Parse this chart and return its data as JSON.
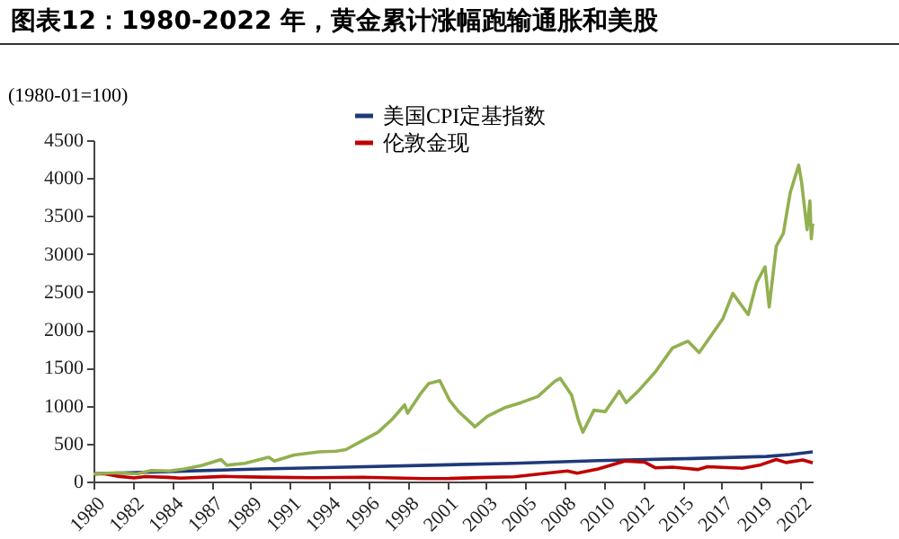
{
  "chart_data": {
    "type": "line",
    "title": "图表12：1980-2022 年，黄金累计涨幅跑输通胀和美股",
    "ylabel": "(1980-01=100)",
    "xlim": [
      "1980-01",
      "2022-10"
    ],
    "xticks": [
      {
        "value": "1980-01",
        "label": "1980"
      },
      {
        "value": "1982-05",
        "label": "1982"
      },
      {
        "value": "1984-09",
        "label": "1984"
      },
      {
        "value": "1987-01",
        "label": "1987"
      },
      {
        "value": "1989-05",
        "label": "1989"
      },
      {
        "value": "1991-09",
        "label": "1991"
      },
      {
        "value": "1994-01",
        "label": "1994"
      },
      {
        "value": "1996-05",
        "label": "1996"
      },
      {
        "value": "1998-09",
        "label": "1998"
      },
      {
        "value": "2001-01",
        "label": "2001"
      },
      {
        "value": "2003-05",
        "label": "2003"
      },
      {
        "value": "2005-09",
        "label": "2005"
      },
      {
        "value": "2008-01",
        "label": "2008"
      },
      {
        "value": "2010-05",
        "label": "2010"
      },
      {
        "value": "2012-09",
        "label": "2012"
      },
      {
        "value": "2015-01",
        "label": "2015"
      },
      {
        "value": "2017-05",
        "label": "2017"
      },
      {
        "value": "2019-09",
        "label": "2019"
      },
      {
        "value": "2022-01",
        "label": "2022"
      }
    ],
    "ylim": [
      0,
      4500
    ],
    "yticks": [
      0,
      500,
      1000,
      1500,
      2000,
      2500,
      3000,
      3500,
      4000,
      4500
    ],
    "legend": "top",
    "grid": false,
    "marker": "none",
    "line_style": "solid",
    "series": [
      {
        "name": "美国CPI定基指数",
        "color": "#1f3a7a",
        "x": [
          "1980-01",
          "1985-01",
          "1990-01",
          "1995-01",
          "2000-01",
          "2005-01",
          "2010-01",
          "2015-01",
          "2020-01",
          "2021-06",
          "2022-10"
        ],
        "values": [
          100,
          135,
          165,
          190,
          215,
          240,
          275,
          300,
          330,
          355,
          390
        ]
      },
      {
        "name": "伦敦金现",
        "color": "#c00000",
        "x": [
          "1980-01",
          "1980-09",
          "1981-06",
          "1982-06",
          "1983-02",
          "1984-06",
          "1985-03",
          "1987-10",
          "1990-01",
          "1993-01",
          "1996-01",
          "1999-08",
          "2001-03",
          "2003-01",
          "2005-01",
          "2006-05",
          "2008-03",
          "2008-10",
          "2010-01",
          "2011-08",
          "2012-10",
          "2013-06",
          "2014-06",
          "2015-12",
          "2016-07",
          "2018-08",
          "2019-09",
          "2020-08",
          "2021-03",
          "2022-03",
          "2022-10"
        ],
        "values": [
          100,
          100,
          70,
          47,
          65,
          55,
          45,
          67,
          58,
          50,
          57,
          38,
          40,
          52,
          63,
          95,
          140,
          110,
          165,
          270,
          255,
          180,
          190,
          158,
          195,
          175,
          220,
          290,
          250,
          285,
          245
        ]
      },
      {
        "color": "#92b050",
        "x": [
          "1980-01",
          "1981-06",
          "1982-08",
          "1983-06",
          "1984-07",
          "1985-06",
          "1986-06",
          "1987-08",
          "1987-12",
          "1989-01",
          "1990-06",
          "1990-10",
          "1991-12",
          "1993-06",
          "1994-06",
          "1995-01",
          "1996-01",
          "1996-12",
          "1997-10",
          "1998-07",
          "1998-09",
          "1999-06",
          "1999-12",
          "2000-08",
          "2001-03",
          "2001-09",
          "2002-07",
          "2002-09",
          "2003-06",
          "2004-06",
          "2005-06",
          "2006-06",
          "2007-06",
          "2007-10",
          "2008-06",
          "2008-11",
          "2009-02",
          "2009-10",
          "2010-06",
          "2011-04",
          "2011-09",
          "2012-06",
          "2013-06",
          "2014-06",
          "2015-05",
          "2016-01",
          "2016-06",
          "2017-06",
          "2018-01",
          "2018-12",
          "2019-06",
          "2019-12",
          "2020-03",
          "2020-08",
          "2021-01",
          "2021-06",
          "2021-12",
          "2022-02",
          "2022-06",
          "2022-08",
          "2022-09",
          "2022-10"
        ],
        "values": [
          100,
          115,
          100,
          145,
          140,
          165,
          210,
          290,
          215,
          240,
          320,
          270,
          350,
          390,
          400,
          420,
          540,
          650,
          820,
          1010,
          900,
          1150,
          1290,
          1330,
          1070,
          930,
          760,
          720,
          860,
          970,
          1040,
          1120,
          1320,
          1360,
          1140,
          800,
          650,
          940,
          920,
          1190,
          1040,
          1200,
          1450,
          1760,
          1850,
          1700,
          1830,
          2150,
          2480,
          2200,
          2620,
          2830,
          2300,
          3100,
          3270,
          3810,
          4170,
          3950,
          3320,
          3700,
          3200,
          3400
        ]
      }
    ]
  }
}
